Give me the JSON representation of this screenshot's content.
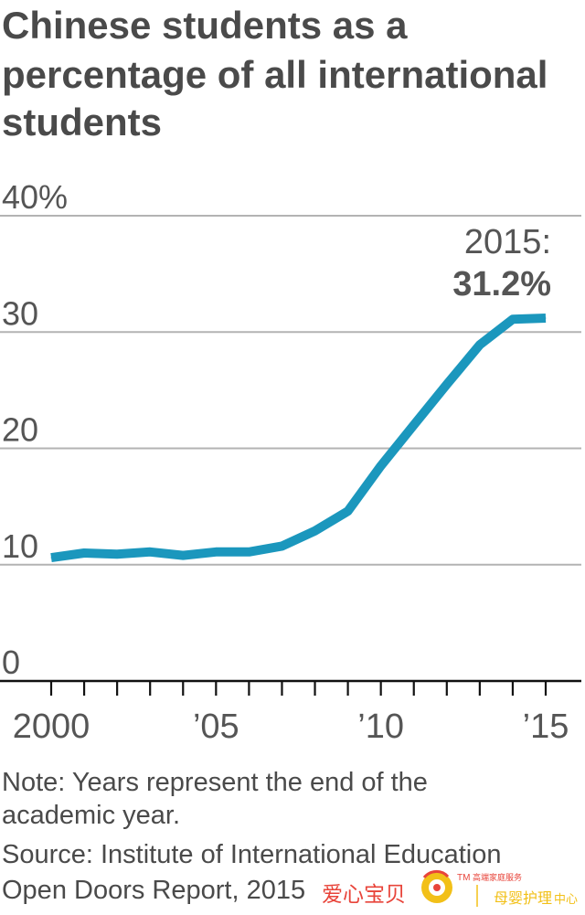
{
  "chart_data": {
    "type": "line",
    "title_lines": [
      "Chinese students as a",
      "percentage of all international",
      "students"
    ],
    "y_ticks": [
      "40%",
      "30",
      "20",
      "10",
      "0"
    ],
    "y_tick_values": [
      40,
      30,
      20,
      10,
      0
    ],
    "ylim": [
      0,
      40
    ],
    "xlim": [
      2000,
      2015
    ],
    "x_tick_labels": [
      "2000",
      "’05",
      "’10",
      "’15"
    ],
    "x_tick_values": [
      2000,
      2005,
      2010,
      2015
    ],
    "grid": true,
    "x": [
      2000,
      2001,
      2002,
      2003,
      2004,
      2005,
      2006,
      2007,
      2008,
      2009,
      2010,
      2011,
      2012,
      2013,
      2014,
      2015
    ],
    "series": [
      {
        "values": [
          10.6,
          11.0,
          10.9,
          11.1,
          10.8,
          11.1,
          11.1,
          11.6,
          12.9,
          14.6,
          18.5,
          22.0,
          25.5,
          28.9,
          31.1,
          31.2
        ],
        "color": "#1b97bd"
      }
    ],
    "annotation": {
      "year_label": "2015:",
      "value_label": "31.2%"
    }
  },
  "notes": {
    "line1": "Note: Years represent the end of the",
    "line2": "academic year.",
    "line3": "Source: Institute of International Education",
    "line4": "Open Doors Report, 2015"
  },
  "watermark": {
    "brand": "爱心宝贝",
    "tm": "TM",
    "tagline": "高端家庭服务",
    "service_main": "母婴护理",
    "service_sub": "中心",
    "colors": {
      "red": "#e8443a",
      "gold": "#f2c018"
    }
  }
}
